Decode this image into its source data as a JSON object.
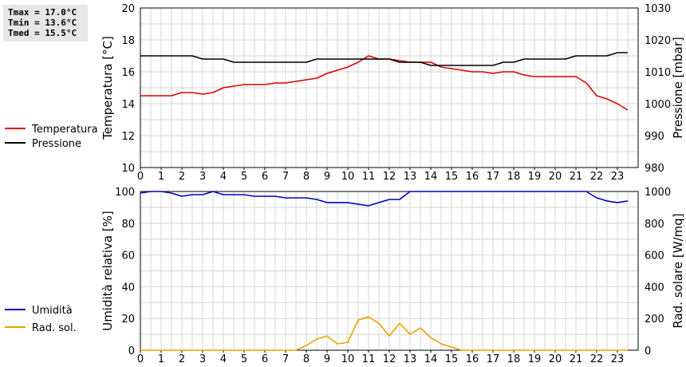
{
  "stats": {
    "tmax": "Tmax = 17.0°C",
    "tmin": "Tmin = 13.6°C",
    "tmed": "Tmed = 15.5°C"
  },
  "chart_data": [
    {
      "type": "line",
      "x": [
        0,
        0.5,
        1,
        1.5,
        2,
        2.5,
        3,
        3.5,
        4,
        4.5,
        5,
        5.5,
        6,
        6.5,
        7,
        7.5,
        8,
        8.5,
        9,
        9.5,
        10,
        10.5,
        11,
        11.5,
        12,
        12.5,
        13,
        13.5,
        14,
        14.5,
        15,
        15.5,
        16,
        16.5,
        17,
        17.5,
        18,
        18.5,
        19,
        19.5,
        20,
        20.5,
        21,
        21.5,
        22,
        22.5,
        23,
        23.5
      ],
      "xlim": [
        0,
        24
      ],
      "xticks": [
        "0",
        "1",
        "2",
        "3",
        "4",
        "5",
        "6",
        "7",
        "8",
        "9",
        "10",
        "11",
        "12",
        "13",
        "14",
        "15",
        "16",
        "17",
        "18",
        "19",
        "20",
        "21",
        "22",
        "23"
      ],
      "ylabel": "Temperatura [°C]",
      "ylim": [
        10,
        20
      ],
      "yticks": [
        "10",
        "12",
        "14",
        "16",
        "18",
        "20"
      ],
      "y2label": "Pressione [mbar]",
      "y2lim": [
        980,
        1030
      ],
      "y2ticks": [
        "980",
        "990",
        "1000",
        "1010",
        "1020",
        "1030"
      ],
      "grid": true,
      "legend_position": "left",
      "series": [
        {
          "name": "Temperatura",
          "axis": "left",
          "color": "#e00000",
          "values": [
            14.5,
            14.5,
            14.5,
            14.5,
            14.7,
            14.7,
            14.6,
            14.7,
            15.0,
            15.1,
            15.2,
            15.2,
            15.2,
            15.3,
            15.3,
            15.4,
            15.5,
            15.6,
            15.9,
            16.1,
            16.3,
            16.6,
            17.0,
            16.8,
            16.8,
            16.7,
            16.6,
            16.6,
            16.6,
            16.3,
            16.2,
            16.1,
            16.0,
            16.0,
            15.9,
            16.0,
            16.0,
            15.8,
            15.7,
            15.7,
            15.7,
            15.7,
            15.7,
            15.3,
            14.5,
            14.3,
            14.0,
            13.6
          ]
        },
        {
          "name": "Pressione",
          "axis": "right",
          "color": "#000000",
          "values": [
            1015,
            1015,
            1015,
            1015,
            1015,
            1015,
            1014,
            1014,
            1014,
            1013,
            1013,
            1013,
            1013,
            1013,
            1013,
            1013,
            1013,
            1014,
            1014,
            1014,
            1014,
            1014,
            1014,
            1014,
            1014,
            1013,
            1013,
            1013,
            1012,
            1012,
            1012,
            1012,
            1012,
            1012,
            1012,
            1013,
            1013,
            1014,
            1014,
            1014,
            1014,
            1014,
            1015,
            1015,
            1015,
            1015,
            1016,
            1016
          ]
        }
      ]
    },
    {
      "type": "line",
      "x": [
        0,
        0.5,
        1,
        1.5,
        2,
        2.5,
        3,
        3.5,
        4,
        4.5,
        5,
        5.5,
        6,
        6.5,
        7,
        7.5,
        8,
        8.5,
        9,
        9.5,
        10,
        10.5,
        11,
        11.5,
        12,
        12.5,
        13,
        13.5,
        14,
        14.5,
        15,
        15.5,
        16,
        16.5,
        17,
        17.5,
        18,
        18.5,
        19,
        19.5,
        20,
        20.5,
        21,
        21.5,
        22,
        22.5,
        23,
        23.5
      ],
      "xlim": [
        0,
        24
      ],
      "xticks": [
        "0",
        "1",
        "2",
        "3",
        "4",
        "5",
        "6",
        "7",
        "8",
        "9",
        "10",
        "11",
        "12",
        "13",
        "14",
        "15",
        "16",
        "17",
        "18",
        "19",
        "20",
        "21",
        "22",
        "23"
      ],
      "ylabel": "Umidità relativa [%]",
      "ylim": [
        0,
        100
      ],
      "yticks": [
        "0",
        "20",
        "40",
        "60",
        "80",
        "100"
      ],
      "y2label": "Rad. solare [W/mq]",
      "y2lim": [
        0,
        1000
      ],
      "y2ticks": [
        "0",
        "200",
        "400",
        "600",
        "800",
        "1000"
      ],
      "grid": true,
      "legend_position": "left",
      "series": [
        {
          "name": "Umidità",
          "axis": "left",
          "color": "#0000c0",
          "values": [
            99,
            100,
            100,
            99,
            97,
            98,
            98,
            100,
            98,
            98,
            98,
            97,
            97,
            97,
            96,
            96,
            96,
            95,
            93,
            93,
            93,
            92,
            91,
            93,
            95,
            95,
            100,
            100,
            100,
            100,
            100,
            100,
            100,
            100,
            100,
            100,
            100,
            100,
            100,
            100,
            100,
            100,
            100,
            100,
            96,
            94,
            93,
            94
          ]
        },
        {
          "name": "Rad. sol.",
          "axis": "right",
          "color": "#f0a000",
          "values": [
            0,
            0,
            0,
            0,
            0,
            0,
            0,
            0,
            0,
            0,
            0,
            0,
            0,
            0,
            0,
            0,
            30,
            70,
            90,
            40,
            50,
            190,
            210,
            170,
            90,
            170,
            100,
            140,
            80,
            40,
            20,
            0,
            0,
            0,
            0,
            0,
            0,
            0,
            0,
            0,
            0,
            0,
            0,
            0,
            0,
            0,
            0,
            0
          ]
        }
      ]
    }
  ]
}
